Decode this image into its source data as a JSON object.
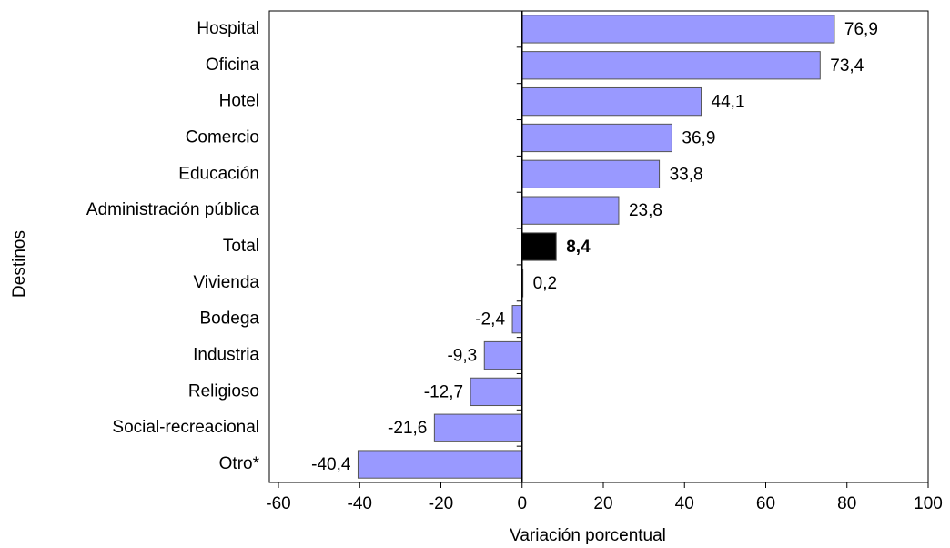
{
  "chart_data": {
    "type": "bar",
    "orientation": "horizontal",
    "x_label": "Variación porcentual",
    "y_label": "Destinos",
    "categories": [
      "Hospital",
      "Oficina",
      "Hotel",
      "Comercio",
      "Educación",
      "Administración pública",
      "Total",
      "Vivienda",
      "Bodega",
      "Industria",
      "Religioso",
      "Social-recreacional",
      "Otro*"
    ],
    "values": [
      76.9,
      73.4,
      44.1,
      36.9,
      33.8,
      23.8,
      8.4,
      0.2,
      -2.4,
      -9.3,
      -12.7,
      -21.6,
      -40.4
    ],
    "value_labels": [
      "76,9",
      "73,4",
      "44,1",
      "36,9",
      "33,8",
      "23,8",
      "8,4",
      "0,2",
      "-2,4",
      "-9,3",
      "-12,7",
      "-21,6",
      "-40,4"
    ],
    "colors": [
      "#9999ff",
      "#9999ff",
      "#9999ff",
      "#9999ff",
      "#9999ff",
      "#9999ff",
      "#000000",
      "#9999ff",
      "#9999ff",
      "#9999ff",
      "#9999ff",
      "#9999ff",
      "#9999ff"
    ],
    "xlim": [
      -60,
      100
    ],
    "xticks": [
      -60,
      -40,
      -20,
      0,
      20,
      40,
      60,
      80,
      100
    ],
    "grid": false
  }
}
